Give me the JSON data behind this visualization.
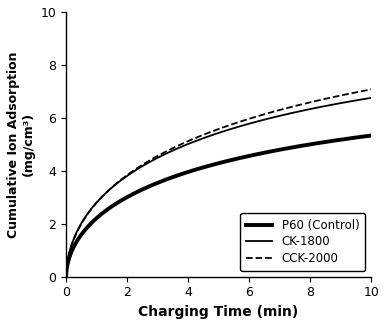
{
  "title": "",
  "xlabel": "Charging Time (min)",
  "ylabel": "Cumulative Ion Adsorption\n(mg/cm³)",
  "xlim": [
    0,
    10
  ],
  "ylim": [
    0,
    10
  ],
  "xticks": [
    0,
    2,
    4,
    6,
    8,
    10
  ],
  "yticks": [
    0,
    2,
    4,
    6,
    8,
    10
  ],
  "series": [
    {
      "label": "P60 (Control)",
      "color": "#000000",
      "linewidth": 2.8,
      "linestyle": "solid",
      "a": 7.5,
      "k": 0.35,
      "n": 0.55
    },
    {
      "label": "CK-1800",
      "color": "#000000",
      "linewidth": 1.3,
      "linestyle": "solid",
      "a": 9.5,
      "k": 0.35,
      "n": 0.55
    },
    {
      "label": "CCK-2000",
      "color": "#000000",
      "linewidth": 1.3,
      "linestyle": "dashed",
      "a": 10.8,
      "k": 0.3,
      "n": 0.55
    }
  ],
  "legend_loc": "lower right",
  "xlabel_fontsize": 10,
  "ylabel_fontsize": 9,
  "tick_fontsize": 9,
  "legend_fontsize": 8.5,
  "background_color": "#ffffff"
}
